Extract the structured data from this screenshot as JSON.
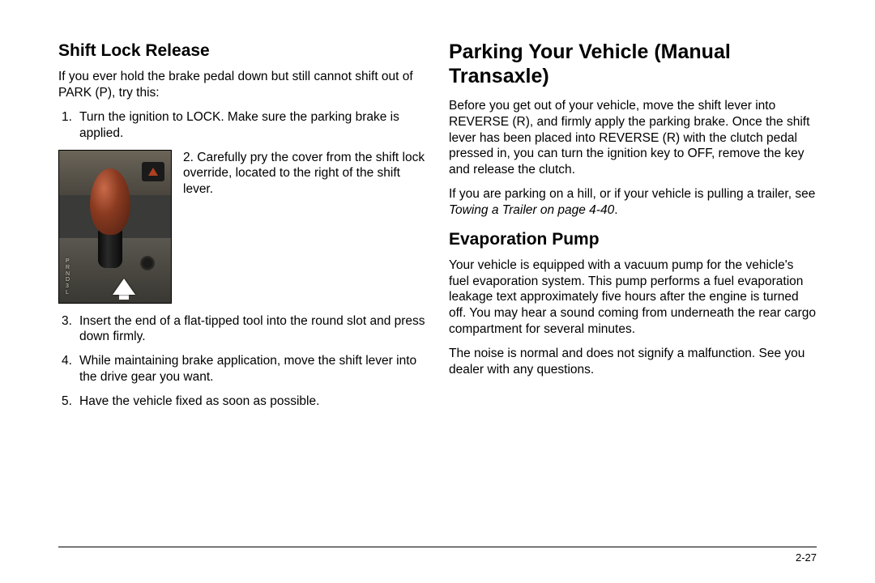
{
  "left": {
    "heading": "Shift Lock Release",
    "intro": "If you ever hold the brake pedal down but still cannot shift out of PARK (P), try this:",
    "step1": "Turn the ignition to LOCK. Make sure the parking brake is applied.",
    "step2_num": "2.",
    "step2": "Carefully pry the cover from the shift lock override, located to the right of the shift lever.",
    "step3": "Insert the end of a flat-tipped tool into the round slot and press down firmly.",
    "step4": "While maintaining brake application, move the shift lever into the drive gear you want.",
    "step5": "Have the vehicle fixed as soon as possible.",
    "gear_letters": "P\nR\nN\nD\n3\nL"
  },
  "right": {
    "heading1": "Parking Your Vehicle (Manual Transaxle)",
    "para1": "Before you get out of your vehicle, move the shift lever into REVERSE (R), and firmly apply the parking brake. Once the shift lever has been placed into REVERSE (R) with the clutch pedal pressed in, you can turn the ignition key to OFF, remove the key and release the clutch.",
    "para2a": "If you are parking on a hill, or if your vehicle is pulling a trailer, see ",
    "para2ref": "Towing a Trailer on page 4-40",
    "para2b": ".",
    "heading2": "Evaporation Pump",
    "para3": "Your vehicle is equipped with a vacuum pump for the vehicle's fuel evaporation system. This pump performs a fuel evaporation leakage text approximately five hours after the engine is turned off. You may hear a sound coming from underneath the rear cargo compartment for several minutes.",
    "para4": "The noise is normal and does not signify a malfunction. See you dealer with any questions."
  },
  "page_number": "2-27"
}
